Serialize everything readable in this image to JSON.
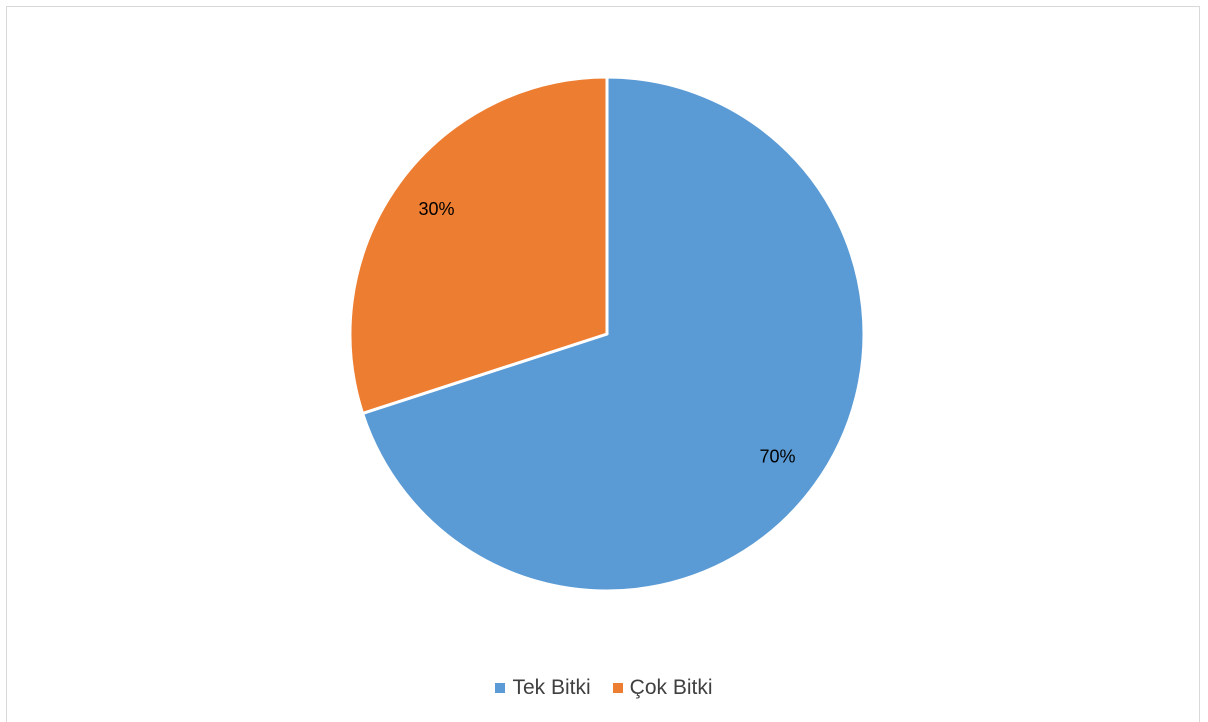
{
  "chart_data": {
    "type": "pie",
    "title": "",
    "categories": [
      "Tek Bitki",
      "Çok Bitki"
    ],
    "values": [
      70,
      30
    ],
    "data_labels": [
      "70%",
      "30%"
    ],
    "colors": [
      "#5b9bd5",
      "#ed7d31"
    ],
    "start_angle_deg": 0,
    "direction": "clockwise",
    "legend_position": "bottom"
  },
  "legend": {
    "items": [
      {
        "label": "Tek Bitki",
        "color": "#5b9bd5"
      },
      {
        "label": "Çok Bitki",
        "color": "#ed7d31"
      }
    ]
  }
}
